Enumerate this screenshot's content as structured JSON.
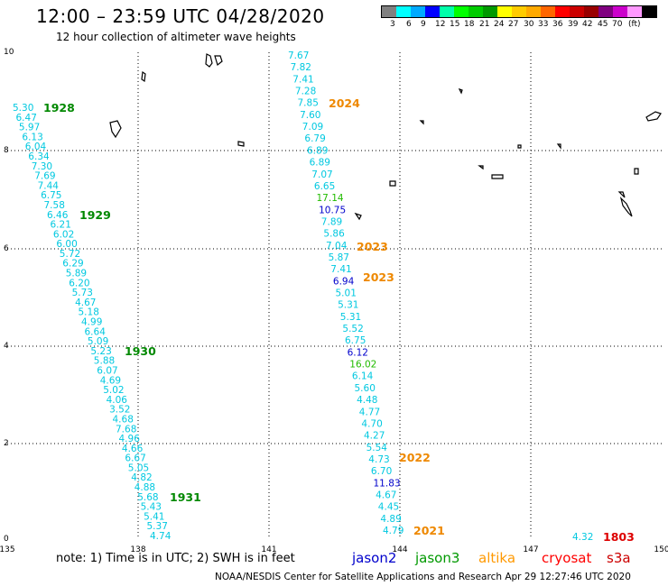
{
  "title": "12:00 – 23:59 UTC 04/28/2020",
  "subtitle": "12 hour collection of altimeter wave heights",
  "colorbar": {
    "colors": [
      "#808080",
      "#00ffff",
      "#00aaff",
      "#0000ff",
      "#00ffaa",
      "#00ff00",
      "#00cc00",
      "#009900",
      "#ffff00",
      "#ffcc00",
      "#ffaa00",
      "#ff6600",
      "#ff0000",
      "#cc0000",
      "#990000",
      "#800080",
      "#cc00cc",
      "#ff99ff",
      "#000000"
    ],
    "labels": [
      "3",
      "6",
      "9",
      "12",
      "15",
      "18",
      "21",
      "24",
      "27",
      "30",
      "33",
      "36",
      "39",
      "42",
      "45",
      "70",
      "(ft)"
    ]
  },
  "axes": {
    "x_ticks": [
      "135",
      "138",
      "141",
      "144",
      "147",
      "150"
    ],
    "y_ticks": [
      "0",
      "2",
      "4",
      "6",
      "8",
      "10"
    ]
  },
  "notes": {
    "note": "note:  1) Time is in UTC;  2) SWH is in feet",
    "credit": "NOAA/NESDIS Center for Satellite Applications and Research    Apr 29 12:27:46 UTC 2020"
  },
  "legend": [
    {
      "name": "jason2",
      "color": "#0000cc"
    },
    {
      "name": "jason3",
      "color": "#009900"
    },
    {
      "name": "altika",
      "color": "#ff9900"
    },
    {
      "name": "cryosat",
      "color": "#ff0000"
    },
    {
      "name": "s3a",
      "color": "#cc0000"
    }
  ],
  "colors": {
    "cyan": "#00c8e0",
    "blue": "#0000cc",
    "green": "#008800",
    "orange": "#ee8800",
    "red": "#dd0000",
    "brightgreen": "#22bb00"
  },
  "tracks": [
    {
      "name": "track-west",
      "points": [
        {
          "v": "5.30",
          "c": "cyan"
        },
        {
          "v": "6.47",
          "c": "cyan"
        },
        {
          "v": "5.97",
          "c": "cyan"
        },
        {
          "v": "6.13",
          "c": "cyan"
        },
        {
          "v": "6.04",
          "c": "cyan"
        },
        {
          "v": "6.34",
          "c": "cyan"
        },
        {
          "v": "7.30",
          "c": "cyan"
        },
        {
          "v": "7.69",
          "c": "cyan"
        },
        {
          "v": "7.44",
          "c": "cyan"
        },
        {
          "v": "6.75",
          "c": "cyan"
        },
        {
          "v": "7.58",
          "c": "cyan"
        },
        {
          "v": "6.46",
          "c": "cyan"
        },
        {
          "v": "6.21",
          "c": "cyan"
        },
        {
          "v": "6.02",
          "c": "cyan"
        },
        {
          "v": "6.00",
          "c": "cyan"
        },
        {
          "v": "5.72",
          "c": "cyan"
        },
        {
          "v": "6.29",
          "c": "cyan"
        },
        {
          "v": "5.89",
          "c": "cyan"
        },
        {
          "v": "6.20",
          "c": "cyan"
        },
        {
          "v": "5.73",
          "c": "cyan"
        },
        {
          "v": "4.67",
          "c": "cyan"
        },
        {
          "v": "5.18",
          "c": "cyan"
        },
        {
          "v": "4.99",
          "c": "cyan"
        },
        {
          "v": "6.64",
          "c": "cyan"
        },
        {
          "v": "5.09",
          "c": "cyan"
        },
        {
          "v": "5.23",
          "c": "cyan"
        },
        {
          "v": "5.88",
          "c": "cyan"
        },
        {
          "v": "6.07",
          "c": "cyan"
        },
        {
          "v": "4.69",
          "c": "cyan"
        },
        {
          "v": "5.02",
          "c": "cyan"
        },
        {
          "v": "4.06",
          "c": "cyan"
        },
        {
          "v": "3.52",
          "c": "cyan"
        },
        {
          "v": "4.68",
          "c": "cyan"
        },
        {
          "v": "7.68",
          "c": "cyan"
        },
        {
          "v": "4.96",
          "c": "cyan"
        },
        {
          "v": "4.66",
          "c": "cyan"
        },
        {
          "v": "6.67",
          "c": "cyan"
        },
        {
          "v": "5.05",
          "c": "cyan"
        },
        {
          "v": "4.82",
          "c": "cyan"
        },
        {
          "v": "4.88",
          "c": "cyan"
        },
        {
          "v": "5.68",
          "c": "cyan"
        },
        {
          "v": "5.43",
          "c": "cyan"
        },
        {
          "v": "5.41",
          "c": "cyan"
        },
        {
          "v": "5.37",
          "c": "cyan"
        },
        {
          "v": "4.74",
          "c": "cyan"
        }
      ]
    },
    {
      "name": "track-east",
      "points": [
        {
          "v": "7.67",
          "c": "cyan"
        },
        {
          "v": "7.82",
          "c": "cyan"
        },
        {
          "v": "7.41",
          "c": "cyan"
        },
        {
          "v": "7.28",
          "c": "cyan"
        },
        {
          "v": "7.85",
          "c": "cyan"
        },
        {
          "v": "7.60",
          "c": "cyan"
        },
        {
          "v": "7.09",
          "c": "cyan"
        },
        {
          "v": "6.79",
          "c": "cyan"
        },
        {
          "v": "6.89",
          "c": "cyan"
        },
        {
          "v": "6.89",
          "c": "cyan"
        },
        {
          "v": "7.07",
          "c": "cyan"
        },
        {
          "v": "6.65",
          "c": "cyan"
        },
        {
          "v": "17.14",
          "c": "brightgreen"
        },
        {
          "v": "10.75",
          "c": "blue"
        },
        {
          "v": "7.89",
          "c": "cyan"
        },
        {
          "v": "5.86",
          "c": "cyan"
        },
        {
          "v": "7.04",
          "c": "cyan"
        },
        {
          "v": "5.87",
          "c": "cyan"
        },
        {
          "v": "7.41",
          "c": "cyan"
        },
        {
          "v": "6.94",
          "c": "blue"
        },
        {
          "v": "5.01",
          "c": "cyan"
        },
        {
          "v": "5.31",
          "c": "cyan"
        },
        {
          "v": "5.31",
          "c": "cyan"
        },
        {
          "v": "5.52",
          "c": "cyan"
        },
        {
          "v": "6.75",
          "c": "cyan"
        },
        {
          "v": "6.12",
          "c": "blue"
        },
        {
          "v": "16.02",
          "c": "brightgreen"
        },
        {
          "v": "6.14",
          "c": "cyan"
        },
        {
          "v": "5.60",
          "c": "cyan"
        },
        {
          "v": "4.48",
          "c": "cyan"
        },
        {
          "v": "4.77",
          "c": "cyan"
        },
        {
          "v": "4.70",
          "c": "cyan"
        },
        {
          "v": "4.27",
          "c": "cyan"
        },
        {
          "v": "5.54",
          "c": "cyan"
        },
        {
          "v": "4.73",
          "c": "cyan"
        },
        {
          "v": "6.70",
          "c": "cyan"
        },
        {
          "v": "11.83",
          "c": "blue"
        },
        {
          "v": "4.67",
          "c": "cyan"
        },
        {
          "v": "4.45",
          "c": "cyan"
        },
        {
          "v": "4.89",
          "c": "cyan"
        },
        {
          "v": "4.79",
          "c": "cyan"
        }
      ]
    },
    {
      "name": "track-s3a",
      "points": [
        {
          "v": "4.32",
          "c": "cyan"
        }
      ]
    }
  ],
  "times": [
    {
      "t": "1928",
      "c": "green"
    },
    {
      "t": "1929",
      "c": "green"
    },
    {
      "t": "1930",
      "c": "green"
    },
    {
      "t": "1931",
      "c": "green"
    },
    {
      "t": "2024",
      "c": "orange"
    },
    {
      "t": "2023",
      "c": "orange"
    },
    {
      "t": "2023",
      "c": "orange"
    },
    {
      "t": "2022",
      "c": "orange"
    },
    {
      "t": "2021",
      "c": "orange"
    },
    {
      "t": "1803",
      "c": "red"
    }
  ]
}
